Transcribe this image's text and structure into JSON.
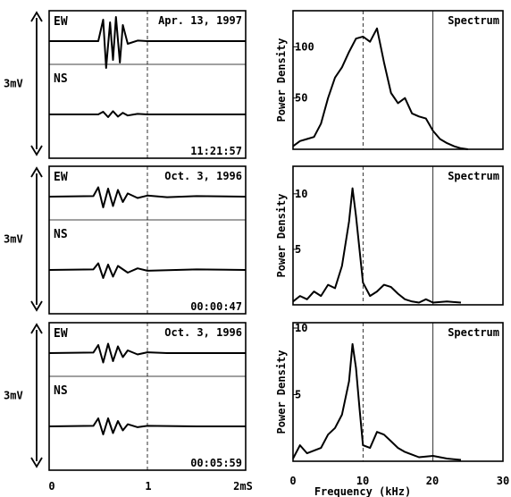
{
  "chart_data": [
    {
      "type": "line",
      "panel": "waveform",
      "ch1_label": "EW",
      "ch2_label": "NS",
      "date": "Apr. 13, 1997",
      "time": "11:21:57",
      "scale_label": "3mV",
      "series": [
        {
          "name": "EW",
          "x": [
            0,
            0.5,
            0.55,
            0.58,
            0.62,
            0.65,
            0.68,
            0.72,
            0.75,
            0.8,
            0.9,
            1.0,
            2.0
          ],
          "values": [
            0,
            0,
            0.8,
            -1.0,
            0.7,
            -0.7,
            0.9,
            -0.8,
            0.6,
            -0.1,
            0.02,
            0,
            0
          ]
        },
        {
          "name": "NS",
          "x": [
            0,
            0.5,
            0.55,
            0.6,
            0.65,
            0.7,
            0.75,
            0.8,
            0.9,
            1.0,
            2.0
          ],
          "values": [
            0,
            0,
            0.1,
            -0.1,
            0.12,
            -0.08,
            0.06,
            -0.04,
            0.02,
            0,
            0
          ]
        }
      ]
    },
    {
      "type": "line",
      "panel": "spectrum",
      "label": "Spectrum",
      "ylabel": "Power Density",
      "yticks": [
        "50",
        "100"
      ],
      "ylim": [
        0,
        130
      ],
      "xlim": [
        0,
        30
      ],
      "series": [
        {
          "x": [
            0,
            1,
            2,
            3,
            4,
            5,
            6,
            7,
            8,
            9,
            10,
            11,
            12,
            13,
            14,
            15,
            16,
            17,
            18,
            19,
            20,
            21,
            22,
            23,
            24,
            25
          ],
          "values": [
            3,
            8,
            10,
            12,
            25,
            50,
            70,
            80,
            95,
            108,
            110,
            105,
            118,
            85,
            55,
            45,
            50,
            35,
            32,
            30,
            18,
            10,
            6,
            3,
            1,
            0
          ]
        }
      ]
    },
    {
      "type": "line",
      "panel": "waveform",
      "ch1_label": "EW",
      "ch2_label": "NS",
      "date": "Oct. 3, 1996",
      "time": "00:00:47",
      "scale_label": "3mV",
      "series": [
        {
          "name": "EW",
          "x": [
            0,
            0.45,
            0.5,
            0.55,
            0.6,
            0.65,
            0.7,
            0.75,
            0.8,
            0.9,
            1.0,
            1.2,
            1.5,
            2.0
          ],
          "values": [
            0,
            0.02,
            0.35,
            -0.4,
            0.3,
            -0.35,
            0.25,
            -0.2,
            0.12,
            -0.05,
            0.04,
            -0.02,
            0.02,
            0
          ]
        },
        {
          "name": "NS",
          "x": [
            0,
            0.45,
            0.5,
            0.55,
            0.6,
            0.65,
            0.7,
            0.8,
            0.9,
            1.0,
            1.5,
            2.0
          ],
          "values": [
            0,
            0.02,
            0.25,
            -0.3,
            0.2,
            -0.25,
            0.15,
            -0.1,
            0.06,
            -0.03,
            0.02,
            0
          ]
        }
      ]
    },
    {
      "type": "line",
      "panel": "spectrum",
      "label": "Spectrum",
      "ylabel": "Power Density",
      "yticks": [
        "5",
        "10"
      ],
      "ylim": [
        0,
        12
      ],
      "xlim": [
        0,
        30
      ],
      "series": [
        {
          "x": [
            0,
            1,
            2,
            3,
            4,
            5,
            6,
            7,
            8,
            8.5,
            9,
            9.5,
            10,
            11,
            12,
            13,
            14,
            15,
            16,
            17,
            18,
            19,
            20,
            22,
            24
          ],
          "values": [
            0.3,
            0.8,
            0.5,
            1.2,
            0.8,
            1.8,
            1.5,
            3.5,
            7.5,
            10.5,
            8,
            5,
            2,
            0.8,
            1.2,
            1.8,
            1.6,
            1.0,
            0.5,
            0.3,
            0.2,
            0.5,
            0.2,
            0.3,
            0.2
          ]
        }
      ]
    },
    {
      "type": "line",
      "panel": "waveform",
      "ch1_label": "EW",
      "ch2_label": "NS",
      "date": "Oct. 3, 1996",
      "time": "00:05:59",
      "scale_label": "3mV",
      "series": [
        {
          "name": "EW",
          "x": [
            0,
            0.45,
            0.5,
            0.55,
            0.6,
            0.65,
            0.7,
            0.75,
            0.8,
            0.9,
            1.0,
            1.2,
            1.5,
            2.0
          ],
          "values": [
            0,
            0.02,
            0.3,
            -0.35,
            0.35,
            -0.3,
            0.25,
            -0.15,
            0.1,
            -0.05,
            0.03,
            0,
            0,
            0
          ]
        },
        {
          "name": "NS",
          "x": [
            0,
            0.45,
            0.5,
            0.55,
            0.6,
            0.65,
            0.7,
            0.75,
            0.8,
            0.9,
            1.0,
            1.5,
            2.0
          ],
          "values": [
            0,
            0.02,
            0.3,
            -0.3,
            0.3,
            -0.25,
            0.2,
            -0.15,
            0.08,
            -0.03,
            0.02,
            0,
            0
          ]
        }
      ]
    },
    {
      "type": "line",
      "panel": "spectrum",
      "label": "Spectrum",
      "ylabel": "Power Density",
      "yticks": [
        "5",
        "10"
      ],
      "ylim": [
        0,
        10
      ],
      "xlim": [
        0,
        30
      ],
      "series": [
        {
          "x": [
            0,
            1,
            2,
            3,
            4,
            5,
            6,
            7,
            8,
            8.5,
            9,
            9.5,
            10,
            11,
            12,
            13,
            14,
            15,
            16,
            17,
            18,
            20,
            22,
            24
          ],
          "values": [
            0.2,
            1.2,
            0.6,
            0.8,
            1.0,
            2.0,
            2.5,
            3.5,
            6.0,
            8.8,
            7.0,
            4.0,
            1.2,
            1.0,
            2.2,
            2.0,
            1.5,
            1.0,
            0.7,
            0.5,
            0.3,
            0.4,
            0.2,
            0.1
          ]
        }
      ]
    }
  ],
  "axes": {
    "wave_x_ticks": [
      "0",
      "1",
      "2mS"
    ],
    "spec_x_ticks": [
      "0",
      "10",
      "20",
      "30"
    ],
    "spec_x_label": "Frequency (kHz)"
  }
}
